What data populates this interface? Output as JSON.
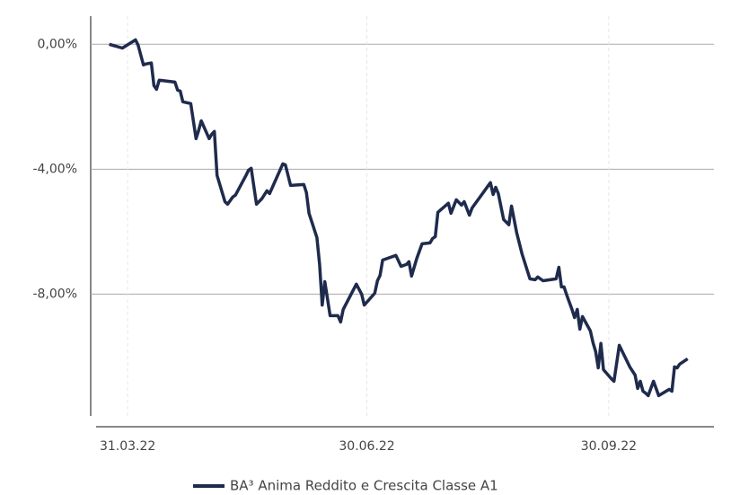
{
  "chart_data": {
    "type": "line",
    "x": [
      "24.03.22",
      "29.03.22",
      "03.04.22",
      "04.04.22",
      "06.04.22",
      "07.04.22",
      "09.04.22",
      "10.04.22",
      "11.04.22",
      "12.04.22",
      "18.04.22",
      "19.04.22",
      "20.04.22",
      "21.04.22",
      "24.04.22",
      "26.04.22",
      "27.04.22",
      "28.04.22",
      "01.05.22",
      "02.05.22",
      "03.05.22",
      "04.05.22",
      "07.05.22",
      "08.05.22",
      "10.05.22",
      "11.05.22",
      "15.05.22",
      "16.05.22",
      "17.05.22",
      "19.05.22",
      "21.05.22",
      "23.05.22",
      "24.05.22",
      "29.05.22",
      "30.05.22",
      "01.06.22",
      "06.06.22",
      "07.06.22",
      "08.06.22",
      "11.06.22",
      "12.06.22",
      "13.06.22",
      "14.06.22",
      "16.06.22",
      "19.06.22",
      "20.06.22",
      "21.06.22",
      "26.06.22",
      "28.06.22",
      "29.06.22",
      "03.07.22",
      "04.07.22",
      "05.07.22",
      "06.07.22",
      "09.07.22",
      "11.07.22",
      "13.07.22",
      "15.07.22",
      "16.07.22",
      "17.07.22",
      "19.07.22",
      "21.07.22",
      "24.07.22",
      "25.07.22",
      "26.07.22",
      "27.07.22",
      "31.07.22",
      "01.08.22",
      "03.08.22",
      "05.08.22",
      "06.08.22",
      "08.08.22",
      "09.08.22",
      "16.08.22",
      "17.08.22",
      "18.08.22",
      "19.08.22",
      "21.08.22",
      "23.08.22",
      "24.08.22",
      "26.08.22",
      "28.08.22",
      "31.08.22",
      "02.09.22",
      "03.09.22",
      "05.09.22",
      "10.09.22",
      "11.09.22",
      "12.09.22",
      "13.09.22",
      "14.09.22",
      "16.09.22",
      "17.09.22",
      "18.09.22",
      "19.09.22",
      "20.09.22",
      "23.09.22",
      "24.09.22",
      "25.09.22",
      "26.09.22",
      "27.09.22",
      "28.09.22",
      "01.10.22",
      "02.10.22",
      "04.10.22",
      "08.10.22",
      "10.10.22",
      "11.10.22",
      "12.10.22",
      "13.10.22",
      "14.10.22",
      "15.10.22",
      "17.10.22",
      "19.10.22",
      "23.10.22",
      "24.10.22",
      "25.10.22",
      "26.10.22",
      "27.10.22",
      "30.10.22"
    ],
    "series": [
      {
        "name": "BA³ Anima Reddito e Crescita Classe A1",
        "color": "#1f2b4d",
        "values": [
          0,
          -0.12,
          0.14,
          -0.03,
          -0.66,
          -0.63,
          -0.6,
          -1.32,
          -1.44,
          -1.15,
          -1.21,
          -1.47,
          -1.5,
          -1.84,
          -1.9,
          -3.02,
          -2.76,
          -2.45,
          -3.02,
          -2.88,
          -2.79,
          -4.2,
          -5.04,
          -5.12,
          -4.89,
          -4.83,
          -4.2,
          -4.03,
          -3.97,
          -5.12,
          -4.95,
          -4.69,
          -4.78,
          -3.83,
          -3.86,
          -4.52,
          -4.49,
          -4.75,
          -5.41,
          -6.19,
          -7.05,
          -8.35,
          -7.6,
          -8.69,
          -8.69,
          -8.89,
          -8.49,
          -7.68,
          -8,
          -8.35,
          -7.97,
          -7.57,
          -7.4,
          -6.91,
          -6.82,
          -6.76,
          -7.11,
          -7.05,
          -6.96,
          -7.42,
          -6.85,
          -6.39,
          -6.36,
          -6.22,
          -6.16,
          -5.38,
          -5.09,
          -5.41,
          -4.98,
          -5.15,
          -5.04,
          -5.47,
          -5.24,
          -4.43,
          -4.81,
          -4.58,
          -4.78,
          -5.61,
          -5.78,
          -5.18,
          -6.04,
          -6.71,
          -7.51,
          -7.54,
          -7.45,
          -7.57,
          -7.51,
          -7.14,
          -7.77,
          -7.77,
          -8.03,
          -8.49,
          -8.75,
          -8.49,
          -9.12,
          -8.72,
          -9.18,
          -9.55,
          -9.84,
          -10.36,
          -9.58,
          -10.42,
          -10.71,
          -10.79,
          -9.64,
          -10.33,
          -10.59,
          -11.02,
          -10.79,
          -11.11,
          -11.17,
          -11.25,
          -10.79,
          -11.25,
          -11.05,
          -11.11,
          -10.33,
          -10.36,
          -10.24,
          -10.07
        ]
      }
    ],
    "xlim": [
      "19.03.22",
      "09.11.22"
    ],
    "xticks": [
      "31.03.22",
      "30.06.22",
      "30.09.22"
    ],
    "ylim": [
      -11.9,
      0.9
    ],
    "yticks": [
      {
        "value": 0,
        "label": "0,00%"
      },
      {
        "value": -4,
        "label": "-4,00%"
      },
      {
        "value": -8,
        "label": "-8,00%"
      }
    ],
    "grid": true
  }
}
